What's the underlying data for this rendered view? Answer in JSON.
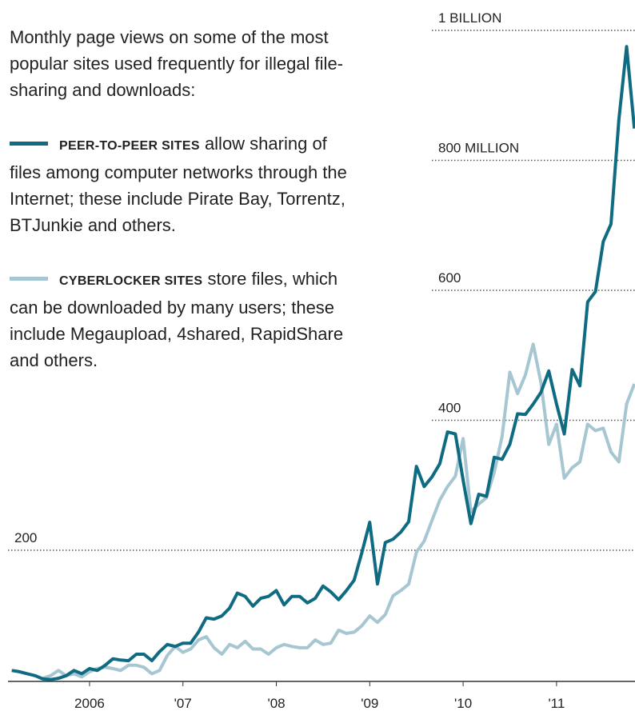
{
  "chart_data": {
    "type": "line",
    "description": "Monthly page views on some of the most popular sites used frequently for illegal file-sharing and downloads:",
    "x": [
      2005.167,
      2005.25,
      2005.333,
      2005.417,
      2005.5,
      2005.583,
      2005.667,
      2005.75,
      2005.833,
      2005.917,
      2006,
      2006.083,
      2006.167,
      2006.25,
      2006.333,
      2006.417,
      2006.5,
      2006.583,
      2006.667,
      2006.75,
      2006.833,
      2006.917,
      2007,
      2007.083,
      2007.167,
      2007.25,
      2007.333,
      2007.417,
      2007.5,
      2007.583,
      2007.667,
      2007.75,
      2007.833,
      2007.917,
      2008,
      2008.083,
      2008.167,
      2008.25,
      2008.333,
      2008.417,
      2008.5,
      2008.583,
      2008.667,
      2008.75,
      2008.833,
      2008.917,
      2009,
      2009.083,
      2009.167,
      2009.25,
      2009.333,
      2009.417,
      2009.5,
      2009.583,
      2009.667,
      2009.75,
      2009.833,
      2009.917,
      2010,
      2010.083,
      2010.167,
      2010.25,
      2010.333,
      2010.417,
      2010.5,
      2010.583,
      2010.667,
      2010.75,
      2010.833,
      2010.917,
      2011,
      2011.083,
      2011.167,
      2011.25,
      2011.333,
      2011.417,
      2011.5,
      2011.583,
      2011.667,
      2011.75,
      2011.833
    ],
    "series": [
      {
        "name": "PEER-TO-PEER SITES",
        "description": "allow sharing of files among computer networks through the Internet; these include Pirate Bay, Torrentz, BTJunkie and others.",
        "color": "#0f6b82",
        "values": [
          15,
          13,
          10,
          7,
          2,
          1,
          3,
          7,
          15,
          10,
          18,
          15,
          23,
          33,
          31,
          30,
          40,
          40,
          30,
          44,
          55,
          52,
          57,
          57,
          74,
          96,
          94,
          99,
          111,
          134,
          129,
          114,
          126,
          129,
          138,
          116,
          129,
          129,
          119,
          126,
          145,
          136,
          124,
          138,
          154,
          197,
          243,
          148,
          212,
          217,
          228,
          244,
          329,
          298,
          313,
          333,
          382,
          379,
          308,
          241,
          286,
          283,
          343,
          340,
          363,
          410,
          409,
          425,
          443,
          476,
          425,
          379,
          478,
          453,
          582,
          598,
          675,
          702,
          862,
          975,
          849
        ]
      },
      {
        "name": "CYBERLOCKER SITES",
        "description": "store files, which can be downloaded by many users; these include Megaupload, 4shared, RapidShare and others.",
        "color": "#a6c6d1",
        "values": [
          null,
          null,
          null,
          null,
          3,
          7,
          15,
          7,
          10,
          5,
          13,
          18,
          20,
          18,
          15,
          23,
          23,
          20,
          10,
          15,
          38,
          52,
          43,
          48,
          62,
          67,
          50,
          40,
          55,
          50,
          60,
          48,
          48,
          40,
          50,
          55,
          52,
          50,
          50,
          62,
          55,
          57,
          77,
          72,
          74,
          84,
          99,
          89,
          101,
          130,
          138,
          148,
          197,
          214,
          246,
          277,
          298,
          314,
          372,
          259,
          271,
          281,
          320,
          375,
          474,
          441,
          470,
          517,
          458,
          363,
          394,
          311,
          327,
          336,
          394,
          384,
          388,
          351,
          336,
          425,
          456
        ]
      }
    ],
    "xlim": [
      2005.127,
      2011.84
    ],
    "xticks": [
      {
        "value": 2006,
        "label": "2006"
      },
      {
        "value": 2007,
        "label": "'07"
      },
      {
        "value": 2008,
        "label": "'08"
      },
      {
        "value": 2009,
        "label": "'09"
      },
      {
        "value": 2010,
        "label": "'10"
      },
      {
        "value": 2011,
        "label": "'11"
      }
    ],
    "ylim": [
      0,
      1050
    ],
    "yticks": [
      200,
      400,
      600,
      {
        "value": 800,
        "label": "800 MILLION"
      },
      {
        "value": 1000,
        "label": "1 BILLION"
      }
    ],
    "grid": true
  }
}
